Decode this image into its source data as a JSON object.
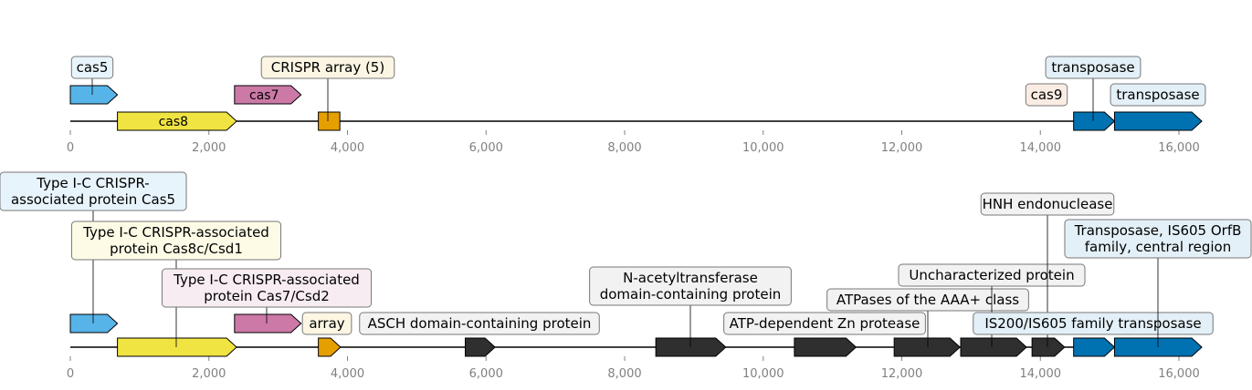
{
  "tracks": [
    {
      "axis_max": 16000,
      "ticks": [
        "0",
        "2,000",
        "4,000",
        "6,000",
        "8,000",
        "10,000",
        "12,000",
        "14,000",
        "16,000"
      ],
      "features": [
        {
          "name": "cas5",
          "start": 0,
          "end": 680,
          "color": "#56b4e9",
          "inline_label": "",
          "callout": [
            "cas5"
          ],
          "callout_bg": "#e8f4fc"
        },
        {
          "name": "cas8",
          "start": 680,
          "end": 2400,
          "color": "#f0e442",
          "inline_label": "cas8",
          "callout": [],
          "callout_bg": ""
        },
        {
          "name": "cas7",
          "start": 2370,
          "end": 3330,
          "color": "#cc79a7",
          "inline_label": "cas7",
          "callout": [],
          "callout_bg": ""
        },
        {
          "name": "CRISPR array",
          "start": 3580,
          "end": 3890,
          "color": "#e69f00",
          "inline_label": "",
          "callout": [
            "CRISPR array (5)"
          ],
          "callout_bg": "#fdf5e3",
          "shape": "box"
        },
        {
          "name": "cas9",
          "start": 13880,
          "end": 14350,
          "color": "#d55e00",
          "inline_label": "",
          "callout": [
            "cas9"
          ],
          "callout_bg": "#fbece3"
        },
        {
          "name": "transposase-1",
          "start": 14480,
          "end": 15070,
          "color": "#0072b2",
          "inline_label": "",
          "callout": [
            "transposase"
          ],
          "callout_bg": "#e3f0f8"
        },
        {
          "name": "transposase-2",
          "start": 15070,
          "end": 16330,
          "color": "#0072b2",
          "inline_label": "",
          "callout": [
            "transposase"
          ],
          "callout_bg": "#e3f0f8"
        }
      ]
    },
    {
      "axis_max": 16000,
      "ticks": [
        "0",
        "2,000",
        "4,000",
        "6,000",
        "8,000",
        "10,000",
        "12,000",
        "14,000",
        "16,000"
      ],
      "features": [
        {
          "name": "cas5",
          "start": 0,
          "end": 680,
          "color": "#56b4e9",
          "callout": [
            "Type I-C CRISPR-",
            "associated protein Cas5"
          ],
          "callout_bg": "#e8f4fc"
        },
        {
          "name": "cas8c",
          "start": 680,
          "end": 2400,
          "color": "#f0e442",
          "callout": [
            "Type I-C CRISPR-associated",
            "protein Cas8c/Csd1"
          ],
          "callout_bg": "#fdfbe6"
        },
        {
          "name": "cas7",
          "start": 2370,
          "end": 3330,
          "color": "#cc79a7",
          "callout": [
            "Type I-C CRISPR-associated",
            "protein Cas7/Csd2"
          ],
          "callout_bg": "#f8ecf3"
        },
        {
          "name": "array",
          "start": 3580,
          "end": 3900,
          "color": "#e69f00",
          "callout": [
            "array"
          ],
          "callout_bg": "#fdf6e3"
        },
        {
          "name": "asch",
          "start": 5700,
          "end": 6130,
          "color": "#2f2f2f",
          "callout": [
            "ASCH domain-containing protein"
          ],
          "callout_bg": "#f2f2f2"
        },
        {
          "name": "n-acetyltransferase",
          "start": 8450,
          "end": 9460,
          "color": "#2f2f2f",
          "callout": [
            "N-acetyltransferase",
            "domain-containing protein"
          ],
          "callout_bg": "#f2f2f2"
        },
        {
          "name": "atp-dependent-protease",
          "start": 10450,
          "end": 11340,
          "color": "#2f2f2f",
          "callout": [
            "ATP-dependent Zn protease"
          ],
          "callout_bg": "#f2f2f2"
        },
        {
          "name": "aaa-atpase",
          "start": 11890,
          "end": 12840,
          "color": "#2f2f2f",
          "callout": [
            "ATPases of the AAA+ class"
          ],
          "callout_bg": "#f2f2f2"
        },
        {
          "name": "uncharacterized",
          "start": 12850,
          "end": 13800,
          "color": "#2f2f2f",
          "callout": [
            "Uncharacterized protein"
          ],
          "callout_bg": "#f2f2f2"
        },
        {
          "name": "hnh",
          "start": 13880,
          "end": 14350,
          "color": "#2f2f2f",
          "callout": [
            "HNH endonuclease"
          ],
          "callout_bg": "#f2f2f2"
        },
        {
          "name": "is200",
          "start": 14480,
          "end": 15070,
          "color": "#0072b2",
          "callout": [
            "IS200/IS605 family transposase"
          ],
          "callout_bg": "#e3f0f8"
        },
        {
          "name": "is605-orfb",
          "start": 15070,
          "end": 16330,
          "color": "#0072b2",
          "callout": [
            "Transposase, IS605 OrfB",
            "family, central region"
          ],
          "callout_bg": "#e3f0f8"
        }
      ]
    }
  ]
}
